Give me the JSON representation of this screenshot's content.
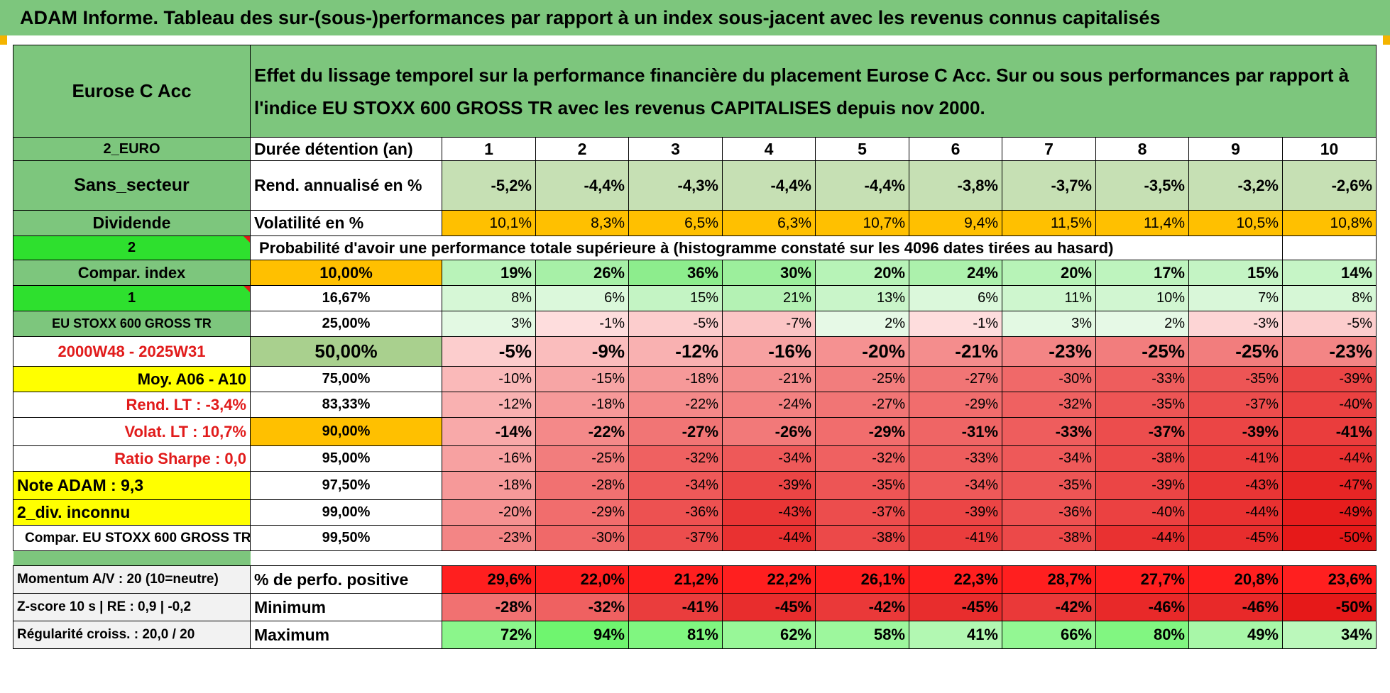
{
  "title": "ADAM Informe. Tableau des sur-(sous-)performances par rapport à un index sous-jacent avec les revenus connus capitalisés",
  "fund_name": "Eurose C Acc",
  "description": "Effet du lissage temporel sur la performance financière du placement Eurose C Acc. Sur ou sous performances par rapport à l'indice EU STOXX 600 GROSS TR avec les revenus CAPITALISES depuis nov 2000.",
  "side": {
    "currency": "2_EURO",
    "sector": "Sans_secteur",
    "dividend": "Dividende",
    "two": "2",
    "compar_index": "Compar. index",
    "one": "1",
    "index_name": "EU STOXX 600 GROSS TR",
    "period": "2000W48 - 2025W31",
    "moy": "Moy. A06 - A10",
    "rend_lt": "Rend. LT :   -3,4%",
    "volat_lt": "Volat. LT :   10,7%",
    "sharpe": "Ratio Sharpe :    0,0",
    "note": "Note ADAM : 9,3",
    "div_unknown": "2_div. inconnu",
    "compar_long": "Compar. EU STOXX 600 GROSS TR",
    "momentum": "Momentum A/V : 20 (10=neutre)",
    "zscore": "Z-score 10 s | RE : 0,9 | -0,2",
    "regularite": "Régularité croiss. : 20,0 / 20"
  },
  "row_labels": {
    "duration": "Durée détention (an)",
    "rend": "Rend. annualisé en %",
    "volat": "Volatilité en %",
    "probability": "Probabilité d'avoir une performance totale supérieure à (histogramme constaté sur les 4096 dates tirées au hasard)",
    "positive": "% de perfo. positive",
    "minimum": "Minimum",
    "maximum": "Maximum"
  },
  "years": [
    "1",
    "2",
    "3",
    "4",
    "5",
    "6",
    "7",
    "8",
    "9",
    "10"
  ],
  "rend": [
    "-5,2%",
    "-4,4%",
    "-4,3%",
    "-4,4%",
    "-4,4%",
    "-3,8%",
    "-3,7%",
    "-3,5%",
    "-3,2%",
    "-2,6%"
  ],
  "volat": [
    "10,1%",
    "8,3%",
    "6,5%",
    "6,3%",
    "10,7%",
    "9,4%",
    "11,5%",
    "11,4%",
    "10,5%",
    "10,8%"
  ],
  "quantiles": [
    {
      "pct": "10,00%",
      "values": [
        "19%",
        "26%",
        "36%",
        "30%",
        "20%",
        "24%",
        "20%",
        "17%",
        "15%",
        "14%"
      ]
    },
    {
      "pct": "16,67%",
      "values": [
        "8%",
        "6%",
        "15%",
        "21%",
        "13%",
        "6%",
        "11%",
        "10%",
        "7%",
        "8%"
      ]
    },
    {
      "pct": "25,00%",
      "values": [
        "3%",
        "-1%",
        "-5%",
        "-7%",
        "2%",
        "-1%",
        "3%",
        "2%",
        "-3%",
        "-5%"
      ]
    },
    {
      "pct": "50,00%",
      "values": [
        "-5%",
        "-9%",
        "-12%",
        "-16%",
        "-20%",
        "-21%",
        "-23%",
        "-25%",
        "-25%",
        "-23%"
      ]
    },
    {
      "pct": "75,00%",
      "values": [
        "-10%",
        "-15%",
        "-18%",
        "-21%",
        "-25%",
        "-27%",
        "-30%",
        "-33%",
        "-35%",
        "-39%"
      ]
    },
    {
      "pct": "83,33%",
      "values": [
        "-12%",
        "-18%",
        "-22%",
        "-24%",
        "-27%",
        "-29%",
        "-32%",
        "-35%",
        "-37%",
        "-40%"
      ]
    },
    {
      "pct": "90,00%",
      "values": [
        "-14%",
        "-22%",
        "-27%",
        "-26%",
        "-29%",
        "-31%",
        "-33%",
        "-37%",
        "-39%",
        "-41%"
      ]
    },
    {
      "pct": "95,00%",
      "values": [
        "-16%",
        "-25%",
        "-32%",
        "-34%",
        "-32%",
        "-33%",
        "-34%",
        "-38%",
        "-41%",
        "-44%"
      ]
    },
    {
      "pct": "97,50%",
      "values": [
        "-18%",
        "-28%",
        "-34%",
        "-39%",
        "-35%",
        "-34%",
        "-35%",
        "-39%",
        "-43%",
        "-47%"
      ]
    },
    {
      "pct": "99,00%",
      "values": [
        "-20%",
        "-29%",
        "-36%",
        "-43%",
        "-37%",
        "-39%",
        "-36%",
        "-40%",
        "-44%",
        "-49%"
      ]
    },
    {
      "pct": "99,50%",
      "values": [
        "-23%",
        "-30%",
        "-37%",
        "-44%",
        "-38%",
        "-41%",
        "-38%",
        "-44%",
        "-45%",
        "-50%"
      ]
    }
  ],
  "positive": [
    "29,6%",
    "22,0%",
    "21,2%",
    "22,2%",
    "26,1%",
    "22,3%",
    "28,7%",
    "27,7%",
    "20,8%",
    "23,6%"
  ],
  "minimum": [
    "-28%",
    "-32%",
    "-41%",
    "-45%",
    "-42%",
    "-45%",
    "-42%",
    "-46%",
    "-46%",
    "-50%"
  ],
  "maximum": [
    "72%",
    "94%",
    "81%",
    "62%",
    "58%",
    "41%",
    "66%",
    "80%",
    "49%",
    "34%"
  ]
}
